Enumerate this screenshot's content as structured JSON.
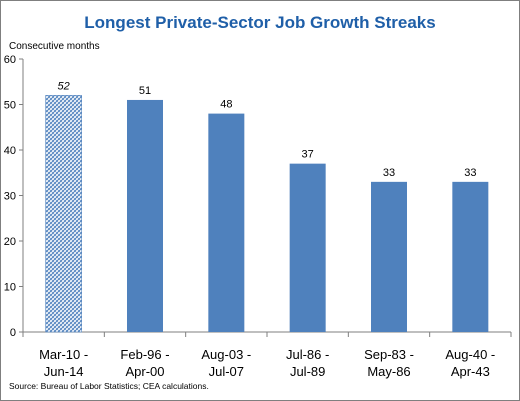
{
  "chart_data": {
    "type": "bar",
    "title": "Longest Private-Sector Job Growth Streaks",
    "ylabel": "Consecutive months",
    "xlabel": "",
    "categories": [
      [
        "Mar-10 -",
        "Jun-14"
      ],
      [
        "Feb-96 -",
        "Apr-00"
      ],
      [
        "Aug-03 -",
        "Jul-07"
      ],
      [
        "Jul-86 -",
        "Jul-89"
      ],
      [
        "Sep-83 -",
        "May-86"
      ],
      [
        "Aug-40 -",
        "Apr-43"
      ]
    ],
    "values": [
      52,
      51,
      48,
      37,
      33,
      33
    ],
    "value_labels": [
      "52",
      "51",
      "48",
      "37",
      "33",
      "33"
    ],
    "hatched": [
      true,
      false,
      false,
      false,
      false,
      false
    ],
    "ylim": [
      0,
      60
    ],
    "yticks": [
      0,
      10,
      20,
      30,
      40,
      50,
      60
    ],
    "grid": false,
    "bar_color": "#4f81bd",
    "hatch_color": "#4f81bd",
    "title_color": "#1f5fa8",
    "source": "Source: Bureau of Labor Statistics; CEA calculations."
  }
}
